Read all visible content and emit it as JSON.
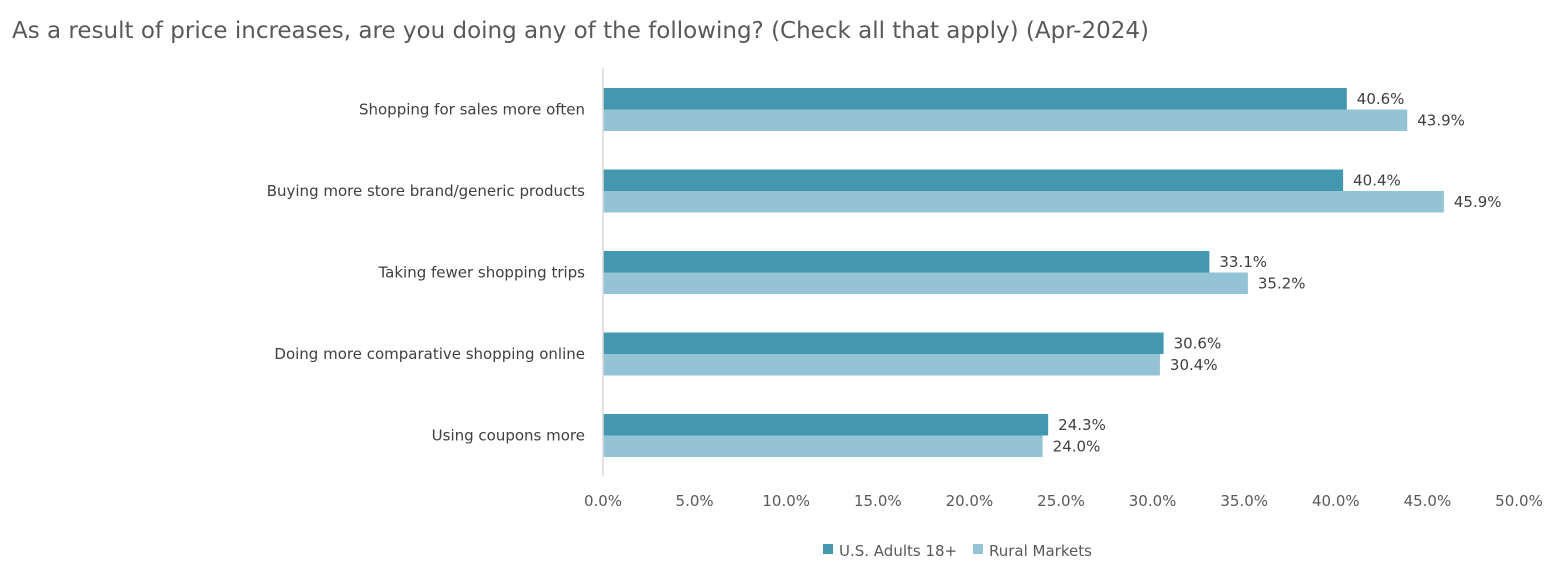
{
  "chart_data": {
    "type": "bar",
    "orientation": "horizontal",
    "title": "As a result of price increases, are you doing any of the following? (Check all that apply) (Apr-2024)",
    "categories": [
      "Shopping for sales more often",
      "Buying more store brand/generic products",
      "Taking fewer shopping trips",
      "Doing more comparative shopping online",
      "Using coupons more"
    ],
    "series": [
      {
        "name": "U.S. Adults 18+",
        "color": "#4398B0",
        "values": [
          40.6,
          40.4,
          33.1,
          30.6,
          24.3
        ],
        "labels": [
          "40.6%",
          "40.4%",
          "33.1%",
          "30.6%",
          "24.3%"
        ]
      },
      {
        "name": "Rural Markets",
        "color": "#93C3D5",
        "values": [
          43.9,
          45.9,
          35.2,
          30.4,
          24.0
        ],
        "labels": [
          "43.9%",
          "45.9%",
          "35.2%",
          "30.4%",
          "24.0%"
        ]
      }
    ],
    "xlim": [
      0,
      50
    ],
    "x_ticks": [
      "0.0%",
      "5.0%",
      "10.0%",
      "15.0%",
      "20.0%",
      "25.0%",
      "30.0%",
      "35.0%",
      "40.0%",
      "45.0%",
      "50.0%"
    ],
    "xlabel": "",
    "ylabel": "",
    "grid": false,
    "legend_position": "bottom"
  }
}
